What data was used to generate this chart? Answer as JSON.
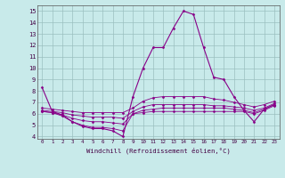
{
  "title": "",
  "xlabel": "Windchill (Refroidissement éolien,°C)",
  "background_color": "#c8eaea",
  "line_color": "#880088",
  "xlim": [
    -0.5,
    23.5
  ],
  "ylim": [
    3.8,
    15.5
  ],
  "yticks": [
    4,
    5,
    6,
    7,
    8,
    9,
    10,
    11,
    12,
    13,
    14,
    15
  ],
  "xticks": [
    0,
    1,
    2,
    3,
    4,
    5,
    6,
    7,
    8,
    9,
    10,
    11,
    12,
    13,
    14,
    15,
    16,
    17,
    18,
    19,
    20,
    21,
    22,
    23
  ],
  "hours": [
    0,
    1,
    2,
    3,
    4,
    5,
    6,
    7,
    8,
    9,
    10,
    11,
    12,
    13,
    14,
    15,
    16,
    17,
    18,
    19,
    20,
    21,
    22,
    23
  ],
  "line1": [
    8.3,
    6.2,
    5.9,
    5.3,
    4.9,
    4.7,
    4.7,
    4.5,
    4.0,
    7.5,
    10.0,
    11.8,
    11.8,
    13.5,
    15.0,
    14.7,
    11.8,
    9.2,
    9.0,
    7.5,
    6.3,
    5.3,
    6.4,
    6.8
  ],
  "line2": [
    6.2,
    6.1,
    5.8,
    5.3,
    5.0,
    4.8,
    4.8,
    4.7,
    4.5,
    6.0,
    6.1,
    6.2,
    6.2,
    6.2,
    6.2,
    6.2,
    6.2,
    6.2,
    6.2,
    6.2,
    6.2,
    6.0,
    6.3,
    6.7
  ],
  "line3": [
    6.2,
    6.1,
    5.9,
    5.6,
    5.4,
    5.3,
    5.3,
    5.2,
    5.1,
    6.0,
    6.3,
    6.4,
    6.5,
    6.5,
    6.5,
    6.5,
    6.5,
    6.5,
    6.5,
    6.4,
    6.3,
    6.1,
    6.4,
    6.8
  ],
  "line4": [
    6.3,
    6.2,
    6.1,
    5.9,
    5.8,
    5.7,
    5.7,
    5.7,
    5.6,
    6.2,
    6.6,
    6.8,
    6.8,
    6.8,
    6.8,
    6.8,
    6.8,
    6.7,
    6.7,
    6.6,
    6.5,
    6.3,
    6.5,
    6.9
  ],
  "line5": [
    6.5,
    6.4,
    6.3,
    6.2,
    6.1,
    6.1,
    6.1,
    6.1,
    6.1,
    6.5,
    7.1,
    7.4,
    7.5,
    7.5,
    7.5,
    7.5,
    7.5,
    7.3,
    7.2,
    7.0,
    6.8,
    6.6,
    6.8,
    7.1
  ]
}
